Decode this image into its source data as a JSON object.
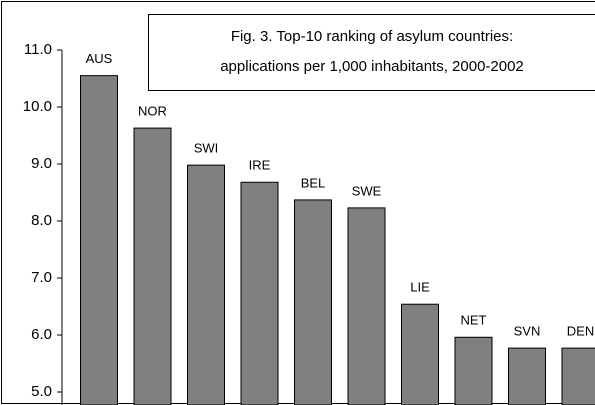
{
  "chart_data": {
    "type": "bar",
    "title": [
      "Fig. 3. Top-10 ranking of asylum countries:",
      "applications per 1,000 inhabitants, 2000-2002"
    ],
    "categories": [
      "AUS",
      "NOR",
      "SWI",
      "IRE",
      "BEL",
      "SWE",
      "LIE",
      "NET",
      "SVN",
      "DEN"
    ],
    "values": [
      10.55,
      9.63,
      8.98,
      8.68,
      8.37,
      8.23,
      6.54,
      5.96,
      5.77,
      5.77
    ],
    "color": "#808080",
    "ylim": [
      5,
      11
    ],
    "yticks": [
      {
        "value": 5,
        "label": "5.0"
      },
      {
        "value": 6,
        "label": "6.0"
      },
      {
        "value": 7,
        "label": "7.0"
      },
      {
        "value": 8,
        "label": "8.0"
      },
      {
        "value": 9,
        "label": "9.0"
      },
      {
        "value": 10,
        "label": "10.0"
      },
      {
        "value": 11,
        "label": "11.0"
      }
    ],
    "grid": false
  }
}
